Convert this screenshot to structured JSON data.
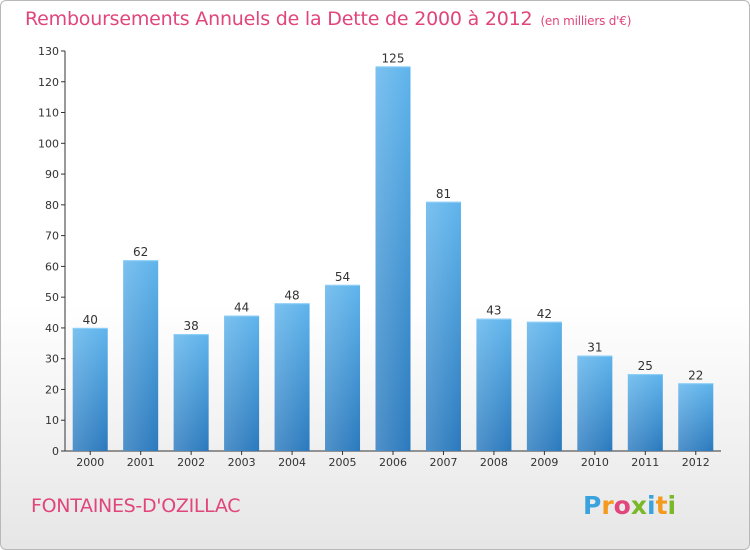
{
  "title": "Remboursements Annuels de la Dette de 2000 à 2012",
  "subtitle": "(en milliers d'€)",
  "commune": "FONTAINES-D'OZILLAC",
  "logo": {
    "letters": [
      "P",
      "r",
      "o",
      "x",
      "i",
      "t",
      "i"
    ],
    "colors": [
      "#3aa3dd",
      "#f39a1f",
      "#e0457b",
      "#7ab829",
      "#3aa3dd",
      "#f39a1f",
      "#7ab829"
    ]
  },
  "chart_data": {
    "type": "bar",
    "categories": [
      "2000",
      "2001",
      "2002",
      "2003",
      "2004",
      "2005",
      "2006",
      "2007",
      "2008",
      "2009",
      "2010",
      "2011",
      "2012"
    ],
    "values": [
      40,
      62,
      38,
      44,
      48,
      54,
      125,
      81,
      43,
      42,
      31,
      25,
      22
    ],
    "title": "Remboursements Annuels de la Dette de 2000 à 2012",
    "ylim": [
      0,
      130
    ],
    "yticks": [
      0,
      10,
      20,
      30,
      40,
      50,
      60,
      70,
      80,
      90,
      100,
      110,
      120,
      130
    ],
    "grid": false,
    "bar_color": "#3a8fd6"
  }
}
